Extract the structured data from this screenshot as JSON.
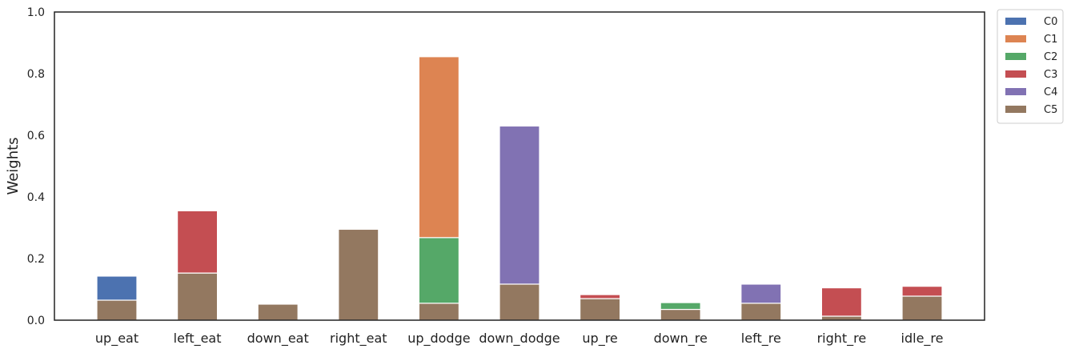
{
  "chart_data": {
    "type": "bar",
    "stacked": true,
    "title": "",
    "xlabel": "",
    "ylabel": "Weights",
    "ylim": [
      0,
      1.0
    ],
    "yticks": [
      "0.0",
      "0.2",
      "0.4",
      "0.6",
      "0.8",
      "1.0"
    ],
    "grid": false,
    "legend_position": "outside-top-right",
    "categories": [
      "up_eat",
      "left_eat",
      "down_eat",
      "right_eat",
      "up_dodge",
      "down_dodge",
      "up_re",
      "down_re",
      "left_re",
      "right_re",
      "idle_re"
    ],
    "series": [
      {
        "name": "C5",
        "color": "#937860",
        "values": [
          0.065,
          0.153,
          0.052,
          0.295,
          0.055,
          0.117,
          0.07,
          0.035,
          0.055,
          0.013,
          0.078
        ]
      },
      {
        "name": "C4",
        "color": "#8172b3",
        "values": [
          0,
          0,
          0,
          0,
          0,
          0.513,
          0,
          0,
          0.062,
          0,
          0
        ]
      },
      {
        "name": "C3",
        "color": "#c44e52",
        "values": [
          0,
          0.202,
          0,
          0,
          0,
          0,
          0.013,
          0,
          0,
          0.092,
          0.032
        ]
      },
      {
        "name": "C2",
        "color": "#55a868",
        "values": [
          0,
          0,
          0,
          0,
          0.213,
          0,
          0,
          0.022,
          0,
          0,
          0
        ]
      },
      {
        "name": "C1",
        "color": "#dd8452",
        "values": [
          0,
          0,
          0,
          0,
          0.587,
          0,
          0,
          0,
          0,
          0,
          0
        ]
      },
      {
        "name": "C0",
        "color": "#4c72b0",
        "values": [
          0.078,
          0,
          0,
          0,
          0,
          0,
          0,
          0,
          0,
          0,
          0
        ]
      }
    ],
    "legend_order": [
      "C0",
      "C1",
      "C2",
      "C3",
      "C4",
      "C5"
    ]
  }
}
